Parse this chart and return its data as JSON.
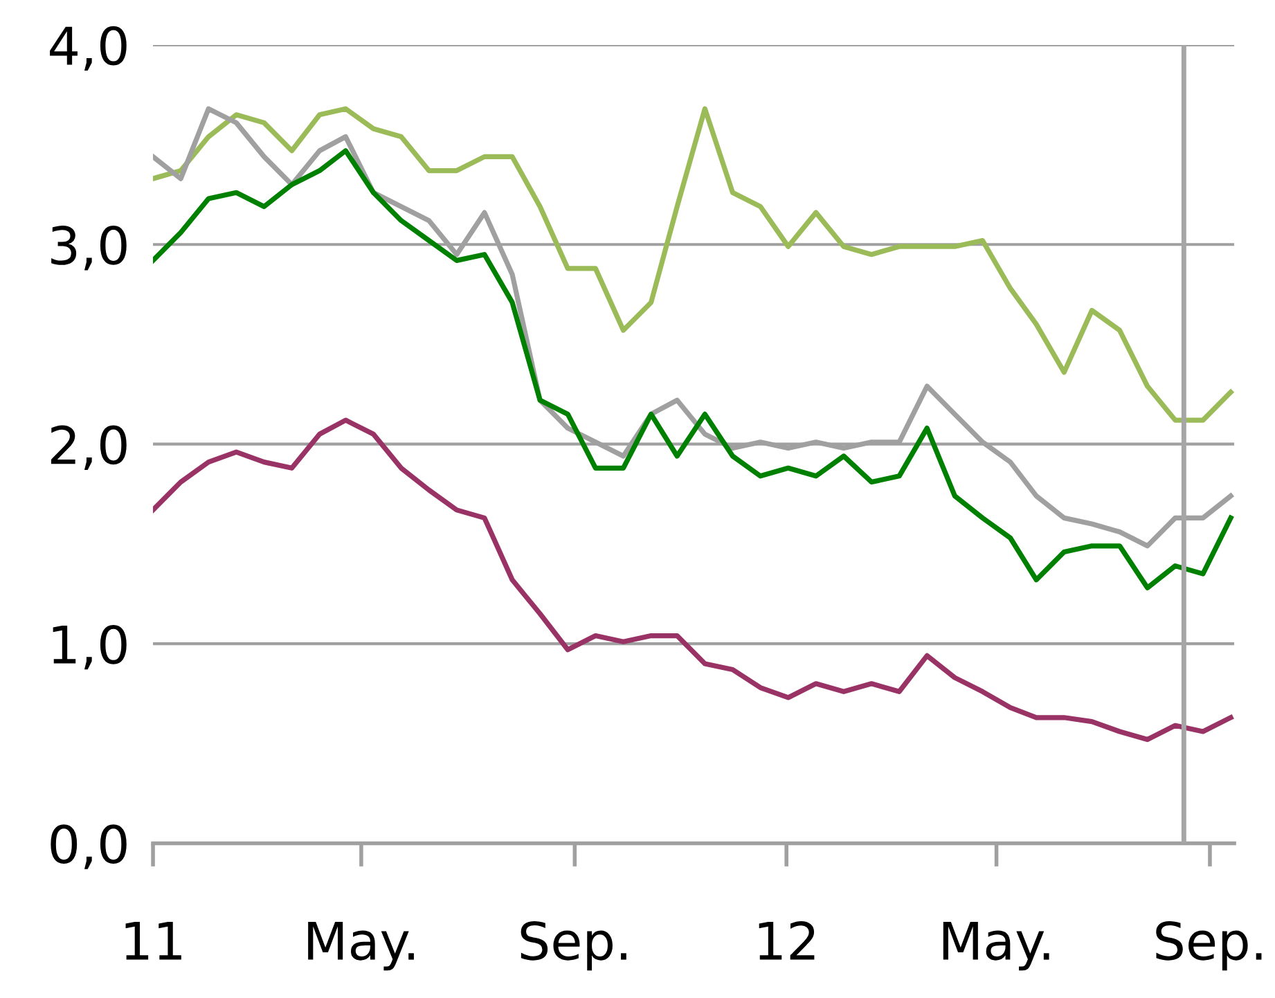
{
  "chart_data": {
    "type": "line",
    "x": [
      "2011-01-01",
      "2011-01-17",
      "2011-02-02",
      "2011-02-18",
      "2011-03-06",
      "2011-03-22",
      "2011-04-07",
      "2011-04-22",
      "2011-05-08",
      "2011-05-24",
      "2011-06-09",
      "2011-06-25",
      "2011-07-11",
      "2011-07-27",
      "2011-08-12",
      "2011-08-28",
      "2011-09-13",
      "2011-09-29",
      "2011-10-15",
      "2011-10-30",
      "2011-11-15",
      "2011-12-01",
      "2011-12-17",
      "2012-01-02",
      "2012-01-18",
      "2012-02-03",
      "2012-02-19",
      "2012-03-06",
      "2012-03-22",
      "2012-04-07",
      "2012-04-23",
      "2012-05-09",
      "2012-05-24",
      "2012-06-09",
      "2012-06-25",
      "2012-07-11",
      "2012-07-27",
      "2012-08-12",
      "2012-08-28",
      "2012-09-13"
    ],
    "series": [
      {
        "color": "#9bbb59",
        "values": [
          3.33,
          3.37,
          3.54,
          3.65,
          3.61,
          3.47,
          3.65,
          3.68,
          3.58,
          3.54,
          3.37,
          3.37,
          3.44,
          3.44,
          3.19,
          2.88,
          2.88,
          2.57,
          2.71,
          3.19,
          3.68,
          3.26,
          3.19,
          2.99,
          3.16,
          2.99,
          2.95,
          2.99,
          2.99,
          2.99,
          3.02,
          2.78,
          2.6,
          2.36,
          2.67,
          2.57,
          2.29,
          2.12,
          2.12,
          2.26
        ]
      },
      {
        "color": "#a0a0a0",
        "values": [
          3.44,
          3.33,
          3.68,
          3.61,
          3.44,
          3.3,
          3.47,
          3.54,
          3.26,
          3.19,
          3.12,
          2.95,
          3.16,
          2.85,
          2.22,
          2.08,
          2.01,
          1.94,
          2.15,
          2.22,
          2.05,
          1.98,
          2.01,
          1.98,
          2.01,
          1.98,
          2.01,
          2.01,
          2.29,
          2.15,
          2.01,
          1.91,
          1.74,
          1.63,
          1.6,
          1.56,
          1.49,
          1.63,
          1.63,
          1.74
        ]
      },
      {
        "color": "#008000",
        "values": [
          2.92,
          3.06,
          3.23,
          3.26,
          3.19,
          3.3,
          3.37,
          3.47,
          3.26,
          3.12,
          3.02,
          2.92,
          2.95,
          2.71,
          2.22,
          2.15,
          1.88,
          1.88,
          2.15,
          1.94,
          2.15,
          1.94,
          1.84,
          1.88,
          1.84,
          1.94,
          1.81,
          1.84,
          2.08,
          1.74,
          1.63,
          1.53,
          1.32,
          1.46,
          1.49,
          1.49,
          1.28,
          1.39,
          1.35,
          1.63
        ]
      },
      {
        "color": "#993366",
        "values": [
          1.67,
          1.81,
          1.91,
          1.96,
          1.91,
          1.88,
          2.05,
          2.12,
          2.05,
          1.88,
          1.77,
          1.67,
          1.63,
          1.32,
          1.15,
          0.97,
          1.04,
          1.01,
          1.04,
          1.04,
          0.9,
          0.87,
          0.78,
          0.73,
          0.8,
          0.76,
          0.8,
          0.76,
          0.94,
          0.83,
          0.76,
          0.68,
          0.63,
          0.63,
          0.61,
          0.56,
          0.52,
          0.59,
          0.56,
          0.63
        ]
      }
    ],
    "xlim": [
      "2011-01-01",
      "2012-09-15"
    ],
    "xticks": [
      {
        "value": "2011-01-01",
        "label": "11"
      },
      {
        "value": "2011-05-01",
        "label": "May."
      },
      {
        "value": "2011-09-01",
        "label": "Sep."
      },
      {
        "value": "2012-01-01",
        "label": "12"
      },
      {
        "value": "2012-05-01",
        "label": "May."
      },
      {
        "value": "2012-09-01",
        "label": "Sep."
      }
    ],
    "ylim": [
      0,
      4
    ],
    "yticks": [
      {
        "value": 0,
        "label": "0,0"
      },
      {
        "value": 1,
        "label": "1,0"
      },
      {
        "value": 2,
        "label": "2,0"
      },
      {
        "value": 3,
        "label": "3,0"
      },
      {
        "value": 4,
        "label": "4,0"
      }
    ],
    "grid": "y",
    "ref_lines": [
      {
        "axis": "x",
        "value": "2012-08-17",
        "color": "#a6a6a6"
      }
    ],
    "line_style": "solid",
    "marker": "none"
  }
}
